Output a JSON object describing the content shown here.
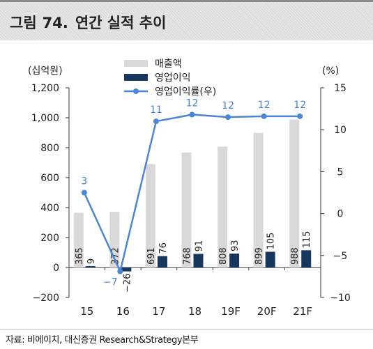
{
  "figure": {
    "label": "그림",
    "number": "74.",
    "title": "연간 실적 추이"
  },
  "source": "자료: 비에이치, 대신증권 Research&Strategy본부",
  "chart_data": {
    "type": "bar",
    "categories": [
      "15",
      "16",
      "17",
      "18",
      "19F",
      "20F",
      "21F"
    ],
    "left_axis": {
      "unit": "(십억원)",
      "range": [
        -200,
        1200
      ],
      "ticks": [
        -200,
        0,
        200,
        400,
        600,
        800,
        1000,
        1200
      ],
      "tick_labels": [
        "−200",
        "0",
        "200",
        "400",
        "600",
        "800",
        "1,000",
        "1,200"
      ]
    },
    "right_axis": {
      "unit": "(%)",
      "range": [
        -10,
        15
      ],
      "ticks": [
        -10,
        -5,
        0,
        5,
        10,
        15
      ],
      "tick_labels": [
        "−10",
        "−5",
        "0",
        "5",
        "10",
        "15"
      ]
    },
    "series": [
      {
        "name": "매출액",
        "kind": "bar",
        "axis": "left",
        "color": "#d9d9d9",
        "values": [
          365,
          372,
          691,
          768,
          808,
          899,
          988
        ],
        "labels": [
          "365",
          "372",
          "691",
          "768",
          "808",
          "899",
          "988"
        ]
      },
      {
        "name": "영업이익",
        "kind": "bar",
        "axis": "left",
        "color": "#17375e",
        "values": [
          9,
          -26,
          76,
          91,
          93,
          105,
          115
        ],
        "labels": [
          "9",
          "−26",
          "76",
          "91",
          "93",
          "105",
          "115"
        ]
      },
      {
        "name": "영업이익률(우)",
        "kind": "line",
        "axis": "right",
        "color": "#4a86d4",
        "values": [
          2.5,
          -6.9,
          11.0,
          11.8,
          11.5,
          11.6,
          11.6
        ],
        "labels": [
          "3",
          "−7",
          "11",
          "12",
          "12",
          "12",
          "12"
        ]
      }
    ],
    "legend_position": "top-center",
    "grid": false
  }
}
